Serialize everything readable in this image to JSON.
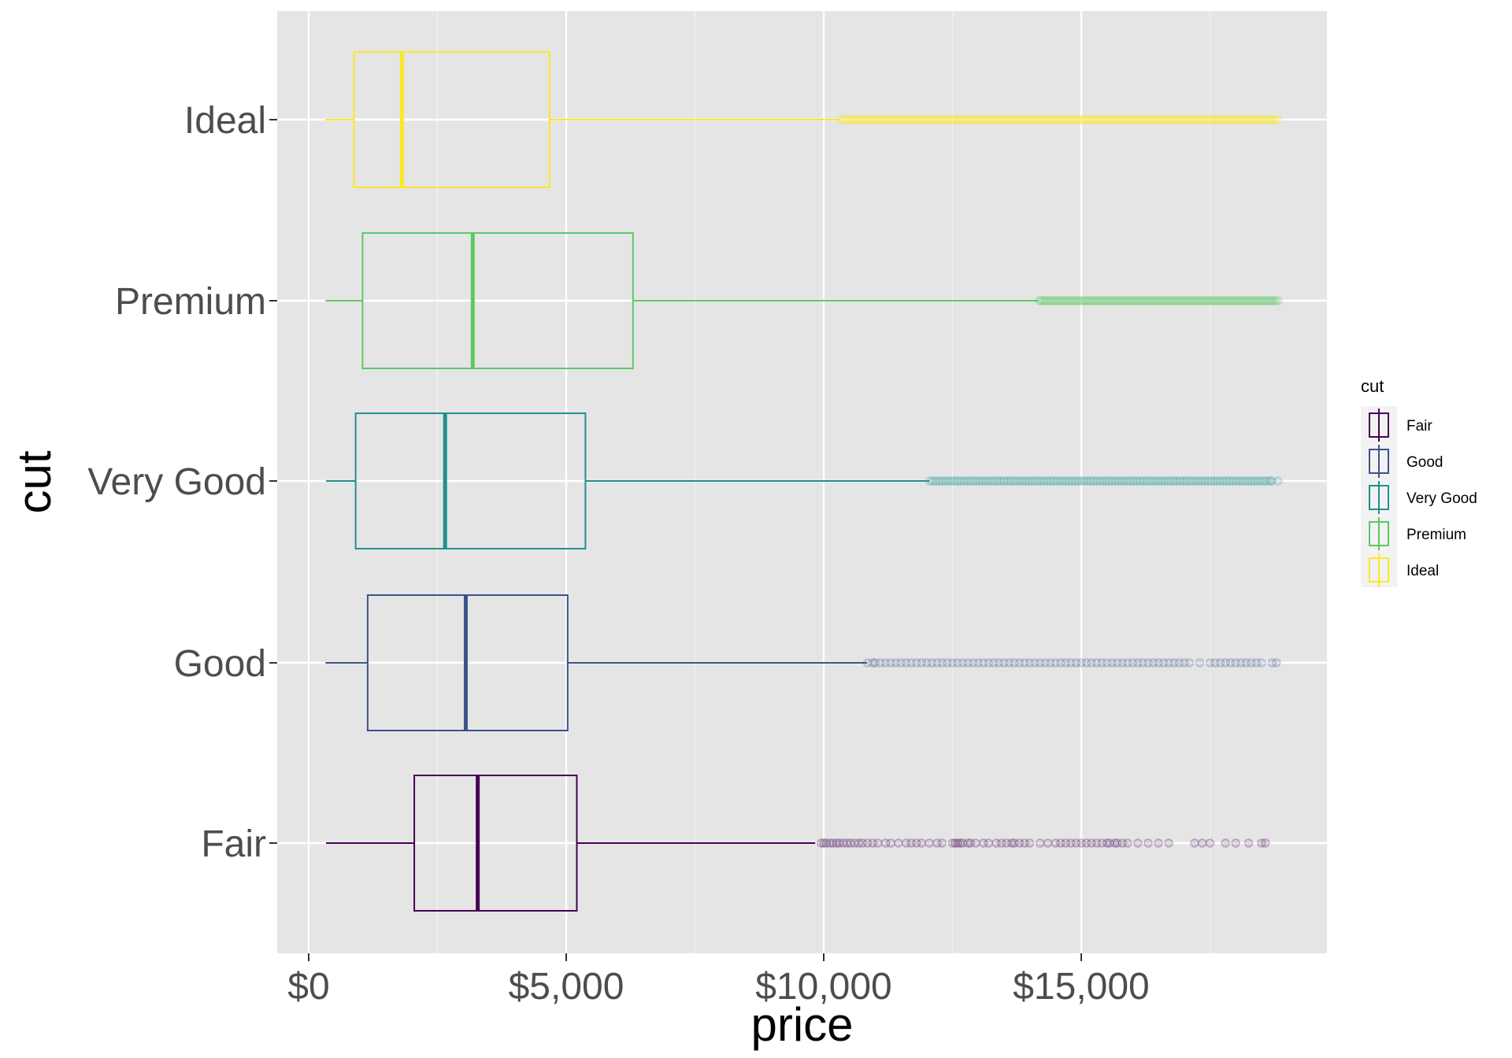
{
  "chart_data": {
    "type": "boxplot",
    "orientation": "horizontal",
    "xlabel": "price",
    "ylabel": "cut",
    "xlim": [
      -600,
      19800
    ],
    "x_ticks": [
      0,
      5000,
      10000,
      15000
    ],
    "x_tick_labels": [
      "$0",
      "$5,000",
      "$10,000",
      "$15,000"
    ],
    "x_minor_ticks": [
      2500,
      7500,
      12500,
      17500
    ],
    "grid": true,
    "legend_placement": "right",
    "legend_title": "cut",
    "background": "#e5e5e5",
    "categories": [
      "Fair",
      "Good",
      "Very Good",
      "Premium",
      "Ideal"
    ],
    "series": [
      {
        "name": "Fair",
        "color": "#440154",
        "min": 337,
        "q1": 2050,
        "median": 3282,
        "q3": 5206,
        "whisker_low": 337,
        "whisker_high": 9836,
        "outliers": [
          9950,
          10000,
          10050,
          10120,
          10180,
          10250,
          10300,
          10380,
          10450,
          10520,
          10600,
          10680,
          10750,
          10850,
          10950,
          11050,
          11200,
          11300,
          11450,
          11600,
          11700,
          11800,
          11900,
          12050,
          12200,
          12300,
          12500,
          12550,
          12600,
          12650,
          12700,
          12800,
          12850,
          12950,
          13100,
          13200,
          13350,
          13450,
          13550,
          13650,
          13700,
          13800,
          13900,
          14000,
          14200,
          14350,
          14500,
          14600,
          14700,
          14800,
          14900,
          15000,
          15100,
          15200,
          15300,
          15400,
          15500,
          15550,
          15650,
          15700,
          15800,
          15900,
          16100,
          16300,
          16500,
          16700,
          17200,
          17350,
          17500,
          17800,
          18000,
          18250,
          18500,
          18574
        ]
      },
      {
        "name": "Good",
        "color": "#3b528b",
        "min": 327,
        "q1": 1145,
        "median": 3050,
        "q3": 5028,
        "whisker_low": 327,
        "whisker_high": 10841,
        "outliers": [
          10850,
          10950,
          11000,
          11100,
          11200,
          11300,
          11400,
          11500,
          11600,
          11700,
          11800,
          11900,
          12000,
          12100,
          12200,
          12300,
          12400,
          12500,
          12600,
          12700,
          12800,
          12900,
          13000,
          13100,
          13200,
          13300,
          13400,
          13500,
          13600,
          13700,
          13800,
          13900,
          14000,
          14100,
          14200,
          14300,
          14400,
          14500,
          14600,
          14700,
          14800,
          14900,
          15000,
          15100,
          15200,
          15300,
          15400,
          15500,
          15600,
          15700,
          15800,
          15900,
          16000,
          16100,
          16200,
          16300,
          16400,
          16500,
          16600,
          16700,
          16800,
          16900,
          17000,
          17100,
          17300,
          17500,
          17600,
          17700,
          17800,
          17900,
          18000,
          18100,
          18200,
          18300,
          18400,
          18500,
          18707,
          18788
        ]
      },
      {
        "name": "Very Good",
        "color": "#21908d",
        "min": 336,
        "q1": 912,
        "median": 2648,
        "q3": 5373,
        "whisker_low": 336,
        "whisker_high": 12055,
        "outliers": [
          12060,
          12120,
          12180,
          12240,
          12300,
          12360,
          12420,
          12480,
          12540,
          12600,
          12660,
          12720,
          12780,
          12840,
          12900,
          12960,
          13020,
          13080,
          13140,
          13200,
          13260,
          13320,
          13380,
          13440,
          13500,
          13560,
          13620,
          13680,
          13740,
          13800,
          13860,
          13920,
          13980,
          14040,
          14100,
          14160,
          14220,
          14280,
          14340,
          14400,
          14460,
          14520,
          14580,
          14640,
          14700,
          14760,
          14820,
          14880,
          14940,
          15000,
          15060,
          15120,
          15180,
          15240,
          15300,
          15360,
          15420,
          15480,
          15540,
          15600,
          15660,
          15720,
          15780,
          15840,
          15900,
          15960,
          16020,
          16080,
          16140,
          16200,
          16260,
          16320,
          16380,
          16440,
          16500,
          16560,
          16620,
          16680,
          16740,
          16800,
          16860,
          16920,
          16980,
          17040,
          17100,
          17160,
          17220,
          17280,
          17340,
          17400,
          17460,
          17520,
          17580,
          17640,
          17700,
          17760,
          17820,
          17880,
          17940,
          18000,
          18060,
          18120,
          18180,
          18240,
          18300,
          18360,
          18420,
          18480,
          18540,
          18600,
          18660,
          18700,
          18818
        ]
      },
      {
        "name": "Premium",
        "color": "#5dc863",
        "min": 326,
        "q1": 1046,
        "median": 3185,
        "q3": 6296,
        "whisker_low": 326,
        "whisker_high": 14171,
        "outliers": [
          14180,
          14220,
          14260,
          14300,
          14340,
          14380,
          14420,
          14460,
          14500,
          14540,
          14580,
          14620,
          14660,
          14700,
          14740,
          14780,
          14820,
          14860,
          14900,
          14940,
          14980,
          15020,
          15060,
          15100,
          15140,
          15180,
          15220,
          15260,
          15300,
          15340,
          15380,
          15420,
          15460,
          15500,
          15540,
          15580,
          15620,
          15660,
          15700,
          15740,
          15780,
          15820,
          15860,
          15900,
          15940,
          15980,
          16020,
          16060,
          16100,
          16140,
          16180,
          16220,
          16260,
          16300,
          16340,
          16380,
          16420,
          16460,
          16500,
          16540,
          16580,
          16620,
          16660,
          16700,
          16740,
          16780,
          16820,
          16860,
          16900,
          16940,
          16980,
          17020,
          17060,
          17100,
          17140,
          17180,
          17220,
          17260,
          17300,
          17340,
          17380,
          17420,
          17460,
          17500,
          17540,
          17580,
          17620,
          17660,
          17700,
          17740,
          17780,
          17820,
          17860,
          17900,
          17940,
          17980,
          18020,
          18060,
          18100,
          18140,
          18180,
          18220,
          18260,
          18300,
          18340,
          18380,
          18420,
          18460,
          18500,
          18540,
          18580,
          18620,
          18660,
          18700,
          18740,
          18780,
          18823
        ]
      },
      {
        "name": "Ideal",
        "color": "#fde725",
        "min": 326,
        "q1": 878,
        "median": 1810,
        "q3": 4678,
        "whisker_low": 326,
        "whisker_high": 10330,
        "outliers": [
          10340,
          10380,
          10420,
          10460,
          10500,
          10540,
          10580,
          10620,
          10660,
          10700,
          10740,
          10780,
          10820,
          10860,
          10900,
          10940,
          10980,
          11020,
          11060,
          11100,
          11140,
          11180,
          11220,
          11260,
          11300,
          11340,
          11380,
          11420,
          11460,
          11500,
          11540,
          11580,
          11620,
          11660,
          11700,
          11740,
          11780,
          11820,
          11860,
          11900,
          11940,
          11980,
          12020,
          12060,
          12100,
          12140,
          12180,
          12220,
          12260,
          12300,
          12340,
          12380,
          12420,
          12460,
          12500,
          12540,
          12580,
          12620,
          12660,
          12700,
          12740,
          12780,
          12820,
          12860,
          12900,
          12940,
          12980,
          13020,
          13060,
          13100,
          13140,
          13180,
          13220,
          13260,
          13300,
          13340,
          13380,
          13420,
          13460,
          13500,
          13540,
          13580,
          13620,
          13660,
          13700,
          13740,
          13780,
          13820,
          13860,
          13900,
          13940,
          13980,
          14020,
          14060,
          14100,
          14140,
          14180,
          14220,
          14260,
          14300,
          14340,
          14380,
          14420,
          14460,
          14500,
          14540,
          14580,
          14620,
          14660,
          14700,
          14740,
          14780,
          14820,
          14860,
          14900,
          14940,
          14980,
          15020,
          15060,
          15100,
          15140,
          15180,
          15220,
          15260,
          15300,
          15340,
          15380,
          15420,
          15460,
          15500,
          15540,
          15580,
          15620,
          15660,
          15700,
          15740,
          15780,
          15820,
          15860,
          15900,
          15940,
          15980,
          16020,
          16060,
          16100,
          16140,
          16180,
          16220,
          16260,
          16300,
          16340,
          16380,
          16420,
          16460,
          16500,
          16540,
          16580,
          16620,
          16660,
          16700,
          16740,
          16780,
          16820,
          16860,
          16900,
          16940,
          16980,
          17020,
          17060,
          17100,
          17140,
          17180,
          17220,
          17260,
          17300,
          17340,
          17380,
          17420,
          17460,
          17500,
          17540,
          17580,
          17620,
          17660,
          17700,
          17740,
          17780,
          17820,
          17860,
          17900,
          17940,
          17980,
          18020,
          18060,
          18100,
          18140,
          18180,
          18220,
          18260,
          18300,
          18340,
          18380,
          18420,
          18460,
          18500,
          18540,
          18580,
          18620,
          18660,
          18700,
          18740,
          18780,
          18806
        ]
      }
    ]
  }
}
